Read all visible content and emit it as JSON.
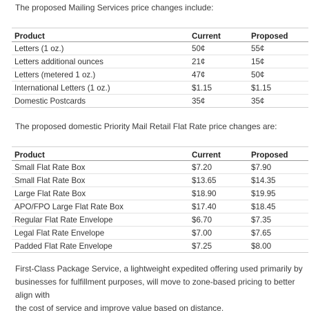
{
  "intro_mailing": "The proposed Mailing Services price changes include:",
  "mailing_table": {
    "headers": {
      "product": "Product",
      "current": "Current",
      "proposed": "Proposed"
    },
    "rows": [
      {
        "product": "Letters (1 oz.)",
        "current": "50¢",
        "proposed": "55¢"
      },
      {
        "product": "Letters additional ounces",
        "current": "21¢",
        "proposed": "15¢"
      },
      {
        "product": "Letters (metered 1 oz.)",
        "current": "47¢",
        "proposed": "50¢"
      },
      {
        "product": "International Letters (1 oz.)",
        "current": "$1.15",
        "proposed": "$1.15"
      },
      {
        "product": "Domestic Postcards",
        "current": "35¢",
        "proposed": "35¢"
      }
    ]
  },
  "intro_priority": "The proposed domestic Priority Mail Retail Flat Rate price changes are:",
  "priority_table": {
    "headers": {
      "product": "Product",
      "current": "Current",
      "proposed": "Proposed"
    },
    "rows": [
      {
        "product": "Small Flat Rate Box",
        "current": "$7.20",
        "proposed": "$7.90"
      },
      {
        "product": "Small Flat Rate Box",
        "current": "$13.65",
        "proposed": "$14.35"
      },
      {
        "product": "Large Flat Rate Box",
        "current": "$18.90",
        "proposed": "$19.95"
      },
      {
        "product": "APO/FPO Large Flat Rate Box",
        "current": "$17.40",
        "proposed": "$18.45"
      },
      {
        "product": "Regular Flat Rate Envelope",
        "current": "$6.70",
        "proposed": "$7.35"
      },
      {
        "product": "Legal Flat Rate Envelope",
        "current": "$7.00",
        "proposed": "$7.65"
      },
      {
        "product": "Padded Flat Rate Envelope",
        "current": "$7.25",
        "proposed": "$8.00"
      }
    ]
  },
  "closing_lines": [
    "First-Class Package Service, a lightweight expedited offering used primarily by",
    "businesses for fulfillment purposes, will move to zone-based pricing to better align with",
    "the cost of service and improve value based on distance."
  ]
}
